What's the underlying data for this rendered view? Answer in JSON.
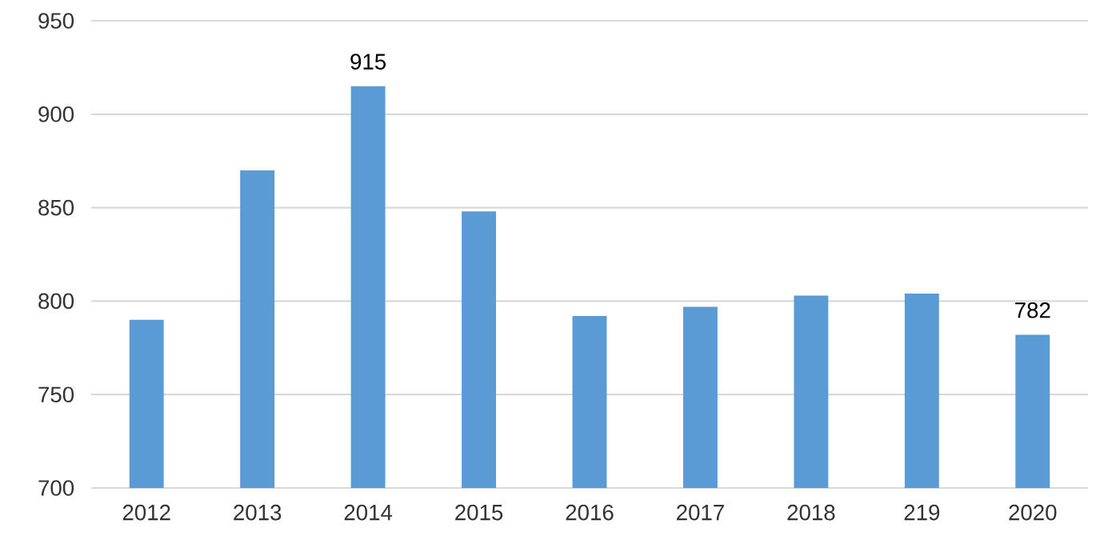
{
  "chart_data": {
    "type": "bar",
    "categories": [
      "2012",
      "2013",
      "2014",
      "2015",
      "2016",
      "2017",
      "2018",
      "219",
      "2020"
    ],
    "values": [
      790,
      870,
      915,
      848,
      792,
      797,
      803,
      804,
      782
    ],
    "value_labels": [
      null,
      null,
      "915",
      null,
      null,
      null,
      null,
      null,
      "782"
    ],
    "color": "#5b9bd5",
    "ylim": [
      700,
      950
    ],
    "yticks": [
      700,
      750,
      800,
      850,
      900,
      950
    ],
    "grid": "y"
  }
}
